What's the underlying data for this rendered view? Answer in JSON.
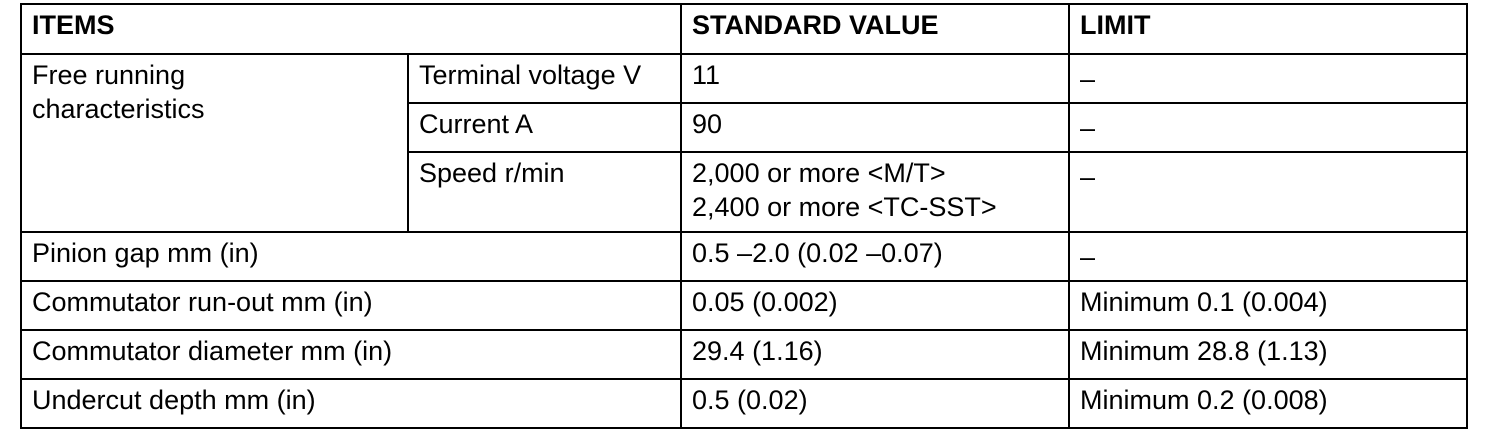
{
  "table": {
    "headers": {
      "items": "ITEMS",
      "standard_value": "STANDARD VALUE",
      "limit": "LIMIT"
    },
    "free_running": {
      "label_line1": "Free running",
      "label_line2": "characteristics",
      "rows": [
        {
          "sub_item": "Terminal voltage V",
          "standard": [
            "11"
          ],
          "limit": "–"
        },
        {
          "sub_item": "Current A",
          "standard": [
            "90"
          ],
          "limit": "–"
        },
        {
          "sub_item": "Speed r/min",
          "standard": [
            "2,000 or more <M/T>",
            "2,400 or more <TC-SST>"
          ],
          "limit": "–"
        }
      ]
    },
    "rows": [
      {
        "item": "Pinion gap mm (in)",
        "standard": "0.5 –2.0 (0.02 –0.07)",
        "limit": "–"
      },
      {
        "item": "Commutator run-out mm (in)",
        "standard": "0.05 (0.002)",
        "limit": "Minimum 0.1 (0.004)"
      },
      {
        "item": "Commutator diameter mm (in)",
        "standard": "29.4 (1.16)",
        "limit": "Minimum 28.8 (1.13)"
      },
      {
        "item": "Undercut depth mm (in)",
        "standard": "0.5 (0.02)",
        "limit": "Minimum 0.2 (0.008)"
      }
    ]
  }
}
